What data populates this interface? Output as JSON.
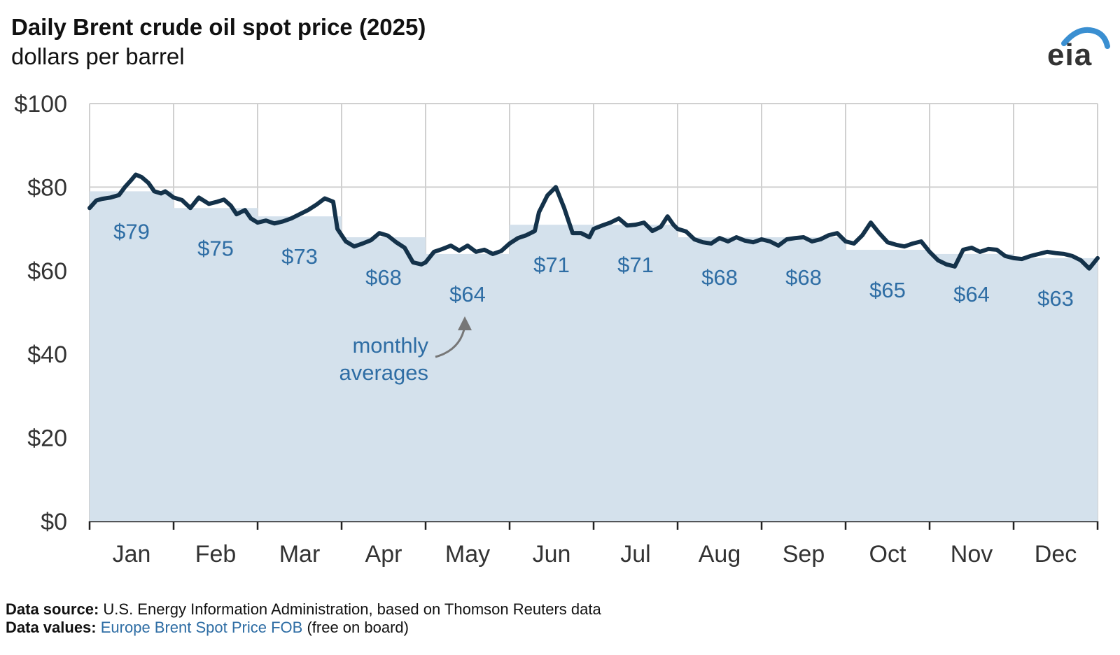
{
  "header": {
    "title": "Daily Brent crude oil spot price (2025)",
    "subtitle": "dollars per barrel"
  },
  "logo": {
    "text": "eia",
    "icon": "eia-logo-arc",
    "arc_color": "#3a8fd1"
  },
  "colors": {
    "line": "#14324a",
    "area": "#d4e1ec",
    "label": "#2e6da4",
    "grid": "#d0d0d0",
    "axis_text": "#333333"
  },
  "chart_data": {
    "type": "line",
    "title": "Daily Brent crude oil spot price (2025)",
    "ylabel": "dollars per barrel",
    "ylim": [
      0,
      100
    ],
    "yticks": [
      0,
      20,
      40,
      60,
      80,
      100
    ],
    "ytick_labels": [
      "$0",
      "$20",
      "$40",
      "$60",
      "$80",
      "$100"
    ],
    "months": [
      "Jan",
      "Feb",
      "Mar",
      "Apr",
      "May",
      "Jun",
      "Jul",
      "Aug",
      "Sep",
      "Oct",
      "Nov",
      "Dec"
    ],
    "grid": true,
    "monthly_averages": {
      "name": "monthly averages",
      "values": [
        79,
        75,
        73,
        68,
        64,
        71,
        71,
        68,
        68,
        65,
        64,
        63
      ],
      "labels": [
        "$79",
        "$75",
        "$73",
        "$68",
        "$64",
        "$71",
        "$71",
        "$68",
        "$68",
        "$65",
        "$64",
        "$63"
      ]
    },
    "annotation": {
      "text_line1": "monthly",
      "text_line2": "averages",
      "points_to": "May"
    },
    "daily": {
      "x_month": [
        0.0,
        0.08,
        0.15,
        0.25,
        0.35,
        0.42,
        0.5,
        0.55,
        0.62,
        0.7,
        0.77,
        0.85,
        0.9,
        1.0,
        1.1,
        1.2,
        1.3,
        1.42,
        1.52,
        1.6,
        1.68,
        1.75,
        1.85,
        1.92,
        2.0,
        2.1,
        2.2,
        2.3,
        2.4,
        2.5,
        2.6,
        2.7,
        2.8,
        2.9,
        2.95,
        3.0,
        3.05,
        3.15,
        3.25,
        3.35,
        3.45,
        3.55,
        3.65,
        3.75,
        3.85,
        3.95,
        4.0,
        4.1,
        4.2,
        4.3,
        4.4,
        4.5,
        4.6,
        4.7,
        4.8,
        4.9,
        5.0,
        5.1,
        5.2,
        5.3,
        5.35,
        5.4,
        5.45,
        5.55,
        5.65,
        5.75,
        5.85,
        5.95,
        6.0,
        6.1,
        6.2,
        6.3,
        6.4,
        6.5,
        6.6,
        6.7,
        6.8,
        6.88,
        6.95,
        7.0,
        7.1,
        7.2,
        7.3,
        7.4,
        7.5,
        7.6,
        7.7,
        7.8,
        7.9,
        8.0,
        8.1,
        8.2,
        8.3,
        8.4,
        8.5,
        8.6,
        8.7,
        8.8,
        8.9,
        9.0,
        9.1,
        9.2,
        9.3,
        9.4,
        9.5,
        9.6,
        9.7,
        9.8,
        9.9,
        10.0,
        10.1,
        10.2,
        10.3,
        10.4,
        10.5,
        10.6,
        10.7,
        10.8,
        10.9,
        11.0,
        11.1,
        11.2,
        11.3,
        11.4,
        11.5,
        11.6,
        11.7,
        11.8,
        11.9,
        12.0
      ],
      "y_price": [
        75.0,
        76.8,
        77.2,
        77.5,
        78.1,
        80.0,
        81.8,
        83.0,
        82.4,
        81.0,
        79.0,
        78.5,
        79.0,
        77.5,
        76.9,
        75.0,
        77.5,
        76.0,
        76.5,
        77.0,
        75.6,
        73.5,
        74.5,
        72.5,
        71.5,
        72.0,
        71.3,
        71.8,
        72.5,
        73.5,
        74.5,
        75.8,
        77.3,
        76.5,
        70.0,
        68.5,
        67.0,
        65.8,
        66.5,
        67.3,
        69.0,
        68.4,
        66.8,
        65.5,
        62.0,
        61.5,
        62.0,
        64.5,
        65.2,
        66.0,
        64.8,
        66.0,
        64.5,
        65.0,
        64.0,
        64.7,
        66.5,
        67.8,
        68.5,
        69.5,
        74.0,
        76.0,
        78.0,
        80.0,
        75.0,
        69.0,
        69.0,
        68.0,
        70.0,
        70.8,
        71.5,
        72.5,
        70.8,
        71.0,
        71.5,
        69.5,
        70.5,
        73.0,
        71.0,
        70.0,
        69.4,
        67.5,
        66.8,
        66.5,
        67.8,
        67.0,
        68.0,
        67.2,
        66.8,
        67.5,
        67.0,
        66.0,
        67.5,
        67.8,
        68.0,
        67.0,
        67.5,
        68.5,
        69.0,
        67.0,
        66.5,
        68.5,
        71.5,
        69.0,
        66.8,
        66.2,
        65.8,
        66.5,
        67.0,
        64.5,
        62.5,
        61.5,
        61.0,
        65.0,
        65.5,
        64.5,
        65.2,
        65.0,
        63.5,
        63.0,
        62.8,
        63.5,
        64.0,
        64.5,
        64.2,
        64.0,
        63.5,
        62.5,
        60.5,
        63.0
      ]
    }
  },
  "footer": {
    "source_label": "Data source:",
    "source_text": " U.S. Energy Information Administration, based on Thomson Reuters data",
    "values_label": "Data values:",
    "values_link": "Europe Brent Spot Price FOB",
    "values_text": " (free on board)"
  }
}
